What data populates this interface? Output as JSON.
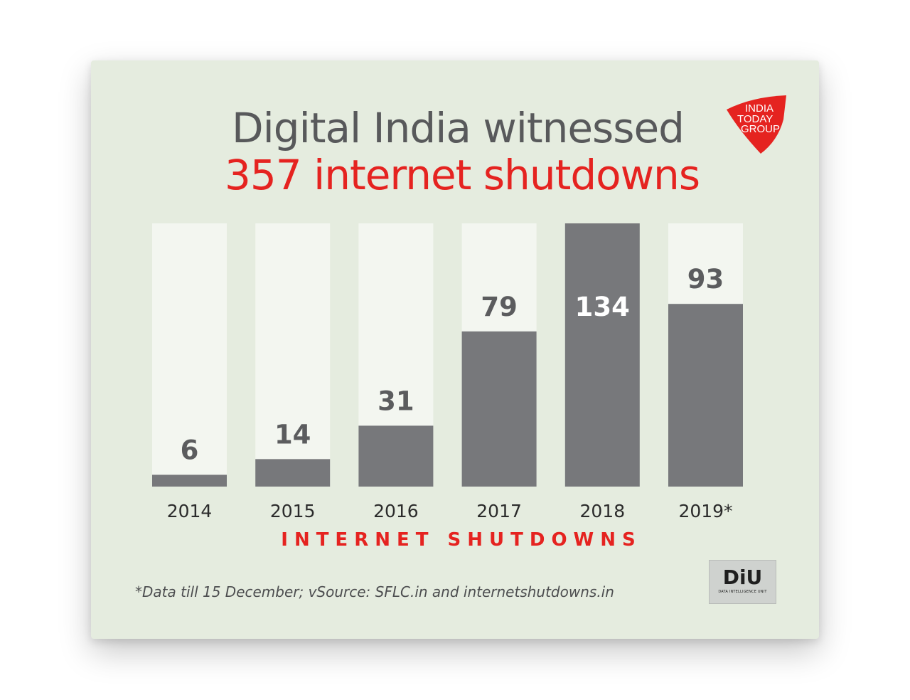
{
  "title": {
    "line1": "Digital India witnessed",
    "line2": "357 internet shutdowns"
  },
  "logo": {
    "line1": "INDIA",
    "line2": "TODAY",
    "line3": "GROUP",
    "color": "#e52320"
  },
  "footnote": "*Data till 15 December; vSource: SFLC.in and internetshutdowns.in",
  "diu_logo": {
    "letters": "DiU",
    "subtitle": "DATA INTELLIGENCE UNIT"
  },
  "colors": {
    "bar": "#77787b",
    "bar_track": "#f3f6f0",
    "accent": "#e52320",
    "background": "#e5ecdf"
  },
  "chart_data": {
    "type": "bar",
    "categories": [
      "2014",
      "2015",
      "2016",
      "2017",
      "2018",
      "2019*"
    ],
    "values": [
      6,
      14,
      31,
      79,
      134,
      93
    ],
    "title": "Digital India witnessed 357 internet shutdowns",
    "xlabel": "INTERNET SHUTDOWNS",
    "ylabel": "",
    "ylim": [
      0,
      134
    ],
    "grid": false,
    "legend": "none"
  }
}
